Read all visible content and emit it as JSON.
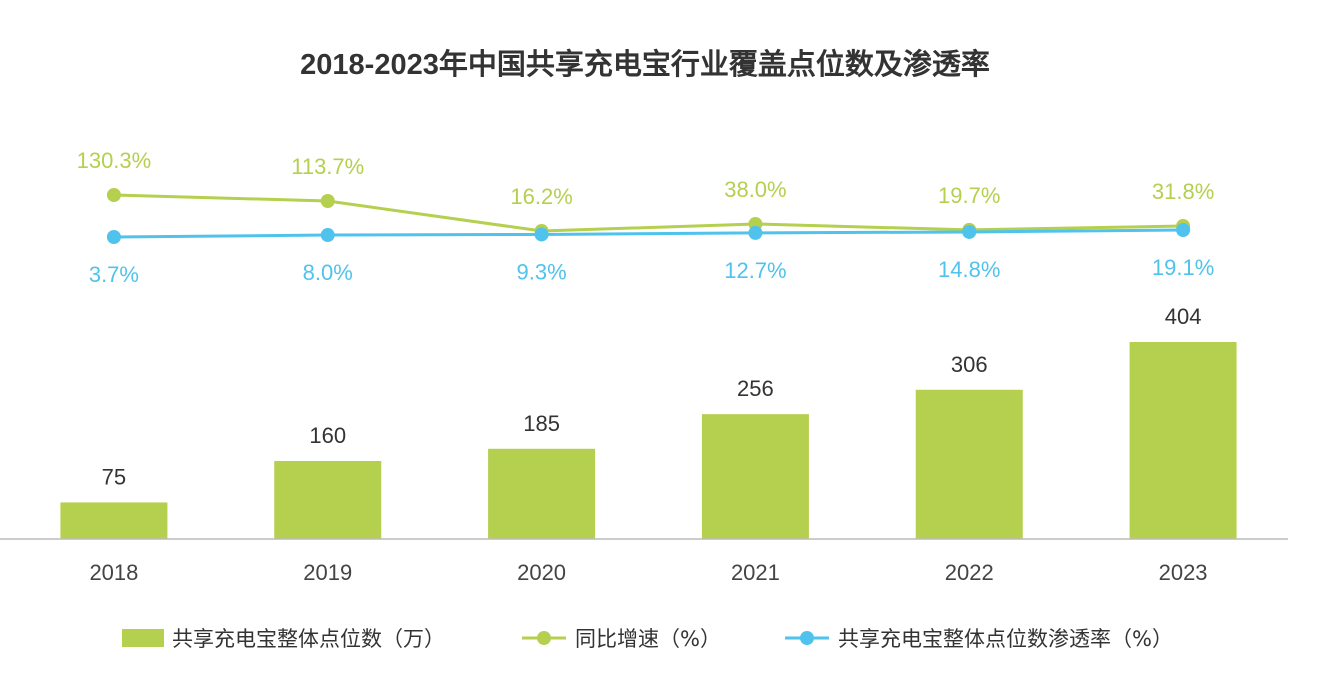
{
  "chart_data": {
    "type": "bar",
    "title": "2018-2023年中国共享充电宝行业覆盖点位数及渗透率",
    "categories": [
      "2018",
      "2019",
      "2020",
      "2021",
      "2022",
      "2023"
    ],
    "bar_series": {
      "name": "共享充电宝整体点位数（万）",
      "values": [
        75,
        160,
        185,
        256,
        306,
        404
      ],
      "labels": [
        "75",
        "160",
        "185",
        "256",
        "306",
        "404"
      ],
      "color": "#b5cf4e"
    },
    "line_series": [
      {
        "name": "同比增速（%）",
        "values": [
          130.3,
          113.7,
          16.2,
          38.0,
          19.7,
          31.8
        ],
        "labels": [
          "130.3%",
          "113.7%",
          "16.2%",
          "38.0%",
          "19.7%",
          "31.8%"
        ],
        "color": "#b5cf4e"
      },
      {
        "name": "共享充电宝整体点位数渗透率（%）",
        "values": [
          3.7,
          8.0,
          9.3,
          12.7,
          14.8,
          19.1
        ],
        "labels": [
          "3.7%",
          "8.0%",
          "9.3%",
          "12.7%",
          "14.8%",
          "19.1%"
        ],
        "color": "#4fc3ec"
      }
    ],
    "grid": false,
    "legend": "bottom"
  },
  "colors": {
    "title": "#333333",
    "axis": "#bbbbbb",
    "bar_label": "#333333"
  }
}
